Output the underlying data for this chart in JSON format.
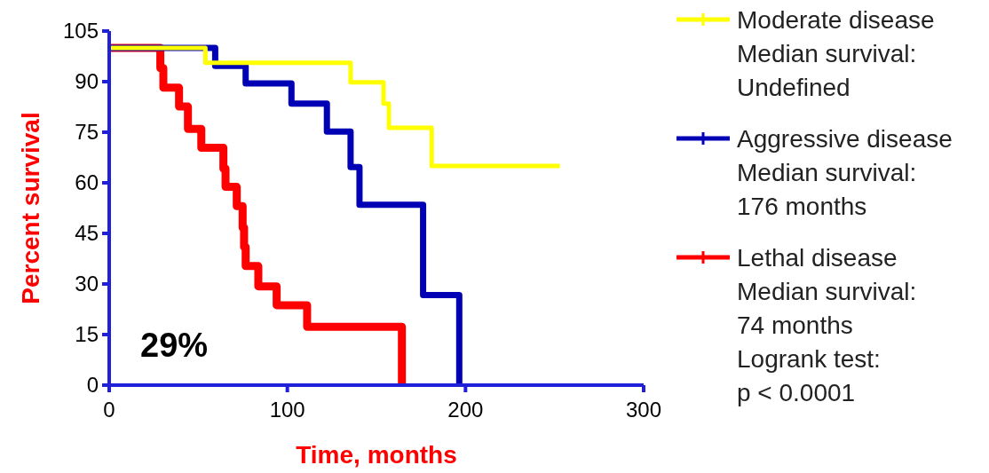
{
  "chart_data": {
    "type": "step",
    "xlabel": "Time, months",
    "ylabel": "Percent survival",
    "xlim": [
      0,
      300
    ],
    "xticks": [
      0,
      100,
      200,
      300
    ],
    "ylim": [
      0,
      105
    ],
    "yticks": [
      0,
      15,
      30,
      45,
      60,
      75,
      90,
      105
    ],
    "legend": "right",
    "grid": false,
    "series": [
      {
        "name": "Moderate disease",
        "color": "#ffff00",
        "x": [
          0,
          54,
          135.5,
          154,
          157,
          181,
          253
        ],
        "values": [
          100,
          95.6,
          89.8,
          83.5,
          76.3,
          65,
          65
        ]
      },
      {
        "name": "Aggressive disease",
        "color": "#0000b4",
        "x": [
          0,
          59.5,
          76.6,
          102.3,
          122.2,
          135.5,
          140.5,
          176.2,
          196.5
        ],
        "values": [
          100,
          94.7,
          89.5,
          83.5,
          75.2,
          64.7,
          53.5,
          26.7,
          0
        ]
      },
      {
        "name": "Lethal disease",
        "color": "#ff0000",
        "x": [
          0,
          28.7,
          30.4,
          39.2,
          44.2,
          51.7,
          64.1,
          65.3,
          71.6,
          74.9,
          75.7,
          76.6,
          83.7,
          94,
          111.1,
          164.3
        ],
        "values": [
          100,
          94,
          88.2,
          82.6,
          76,
          70.4,
          64.2,
          58.8,
          53.1,
          46.7,
          41,
          35.3,
          29.3,
          23.7,
          17.3,
          0
        ]
      }
    ],
    "annotations": [
      "Median survival:\nUndefined",
      "Median survival:\n176 months",
      "Median survival:\n74 months\nLogrank test:\np < 0.0001",
      "29%"
    ]
  }
}
